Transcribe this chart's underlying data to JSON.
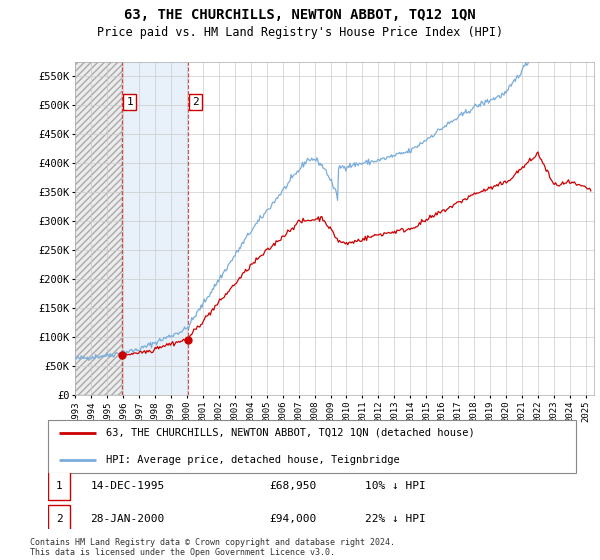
{
  "title": "63, THE CHURCHILLS, NEWTON ABBOT, TQ12 1QN",
  "subtitle": "Price paid vs. HM Land Registry's House Price Index (HPI)",
  "ylabel_ticks": [
    "£0",
    "£50K",
    "£100K",
    "£150K",
    "£200K",
    "£250K",
    "£300K",
    "£350K",
    "£400K",
    "£450K",
    "£500K",
    "£550K"
  ],
  "ytick_values": [
    0,
    50000,
    100000,
    150000,
    200000,
    250000,
    300000,
    350000,
    400000,
    450000,
    500000,
    550000
  ],
  "ylim": [
    0,
    575000
  ],
  "xlim_start": 1993.0,
  "xlim_end": 2025.5,
  "purchase1_date": 1995.96,
  "purchase1_price": 68950,
  "purchase1_label": "1",
  "purchase2_date": 2000.08,
  "purchase2_price": 94000,
  "purchase2_label": "2",
  "red_line_color": "#cc0000",
  "blue_line_color": "#7aaddc",
  "legend_entry1": "63, THE CHURCHILLS, NEWTON ABBOT, TQ12 1QN (detached house)",
  "legend_entry2": "HPI: Average price, detached house, Teignbridge",
  "table_row1": [
    "1",
    "14-DEC-1995",
    "£68,950",
    "10% ↓ HPI"
  ],
  "table_row2": [
    "2",
    "28-JAN-2000",
    "£94,000",
    "22% ↓ HPI"
  ],
  "footnote": "Contains HM Land Registry data © Crown copyright and database right 2024.\nThis data is licensed under the Open Government Licence v3.0."
}
